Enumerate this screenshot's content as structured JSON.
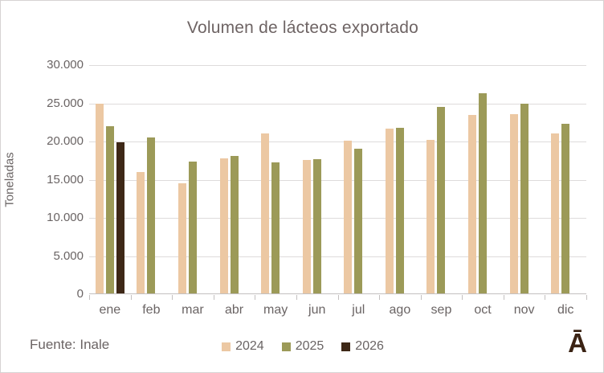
{
  "chart_data": {
    "type": "bar",
    "title": "Volumen de lácteos exportado",
    "ylabel": "Toneladas",
    "xlabel": "",
    "categories": [
      "ene",
      "feb",
      "mar",
      "abr",
      "may",
      "jun",
      "jul",
      "ago",
      "sep",
      "oct",
      "nov",
      "dic"
    ],
    "series": [
      {
        "name": "2024",
        "color": "#ecc8a3",
        "values": [
          24800,
          15900,
          14400,
          17700,
          20900,
          17500,
          20000,
          21600,
          20100,
          23400,
          23500,
          20900
        ]
      },
      {
        "name": "2025",
        "color": "#9c9a58",
        "values": [
          21900,
          20400,
          17300,
          18000,
          17200,
          17600,
          19000,
          21700,
          24400,
          26200,
          24800,
          22200
        ]
      },
      {
        "name": "2026",
        "color": "#3e2817",
        "values": [
          19800,
          null,
          null,
          null,
          null,
          null,
          null,
          null,
          null,
          null,
          null,
          null
        ]
      }
    ],
    "ylim": [
      0,
      30000
    ],
    "ytick_step": 5000,
    "ytick_labels_top_to_bottom": [
      "30.000",
      "25.000",
      "20.000",
      "15.000",
      "10.000",
      "5.000",
      "0"
    ],
    "grid": true,
    "gridline_color": "#dedbdb",
    "axis_line_color": "#c3c0c0",
    "text_color": "#6a6464",
    "title_color": "#6e6464",
    "legend_position": "bottom"
  },
  "footer": {
    "source": "Fuente: Inale",
    "logo_text": "Ā",
    "logo_color": "#3b2314"
  }
}
